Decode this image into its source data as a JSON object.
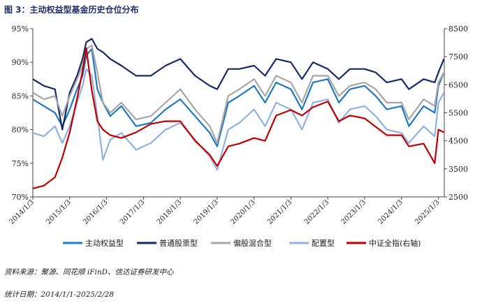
{
  "title": "图 3：主动权益型基金历史仓位分布",
  "source_note": "资料来源：聚源、同花顺 iFinD、信达证券研发中心",
  "date_note": "统计日期：2014/1/1-2025/2/28",
  "chart_data": {
    "type": "line",
    "x_ticks": [
      "2014/1/3",
      "2015/1/3",
      "2016/1/3",
      "2017/1/3",
      "2018/1/3",
      "2019/1/3",
      "2020/1/3",
      "2021/1/3",
      "2022/1/3",
      "2023/1/3",
      "2024/1/3",
      "2025/1/3"
    ],
    "y_left": {
      "ticks": [
        "70%",
        "75%",
        "80%",
        "85%",
        "90%",
        "95%"
      ],
      "range": [
        70,
        95
      ]
    },
    "y_right": {
      "ticks": [
        "2500",
        "3500",
        "4500",
        "5500",
        "6500",
        "7500",
        "8500"
      ],
      "range": [
        2500,
        8500
      ]
    },
    "grid": false,
    "legend_position": "bottom",
    "series": [
      {
        "name": "主动权益型",
        "axis": "left",
        "color": "#1f78c4",
        "x": [
          2014.0,
          2014.3,
          2014.6,
          2014.8,
          2015.0,
          2015.2,
          2015.35,
          2015.45,
          2015.6,
          2015.75,
          2015.9,
          2016.1,
          2016.4,
          2016.8,
          2017.2,
          2017.6,
          2018.0,
          2018.4,
          2018.8,
          2019.0,
          2019.3,
          2019.6,
          2020.0,
          2020.3,
          2020.6,
          2021.0,
          2021.3,
          2021.6,
          2022.0,
          2022.3,
          2022.6,
          2023.0,
          2023.3,
          2023.6,
          2024.0,
          2024.2,
          2024.6,
          2024.9,
          2025.0,
          2025.15
        ],
        "values": [
          84.5,
          83.5,
          82.5,
          80.5,
          83.0,
          86.0,
          88.0,
          91.0,
          92.0,
          86.0,
          84.0,
          82.0,
          83.5,
          80.5,
          81.0,
          83.0,
          84.5,
          82.0,
          79.5,
          77.5,
          84.0,
          85.0,
          86.5,
          84.0,
          87.0,
          86.0,
          83.0,
          87.0,
          87.5,
          84.0,
          86.0,
          86.5,
          85.0,
          83.0,
          83.5,
          80.5,
          83.5,
          82.5,
          86.5,
          88.5
        ]
      },
      {
        "name": "普通股票型",
        "axis": "left",
        "color": "#13296b",
        "x": [
          2014.0,
          2014.3,
          2014.6,
          2014.8,
          2015.0,
          2015.2,
          2015.35,
          2015.45,
          2015.6,
          2015.75,
          2015.9,
          2016.1,
          2016.4,
          2016.8,
          2017.2,
          2017.6,
          2018.0,
          2018.4,
          2018.8,
          2019.0,
          2019.3,
          2019.6,
          2020.0,
          2020.3,
          2020.6,
          2021.0,
          2021.3,
          2021.6,
          2022.0,
          2022.3,
          2022.6,
          2023.0,
          2023.3,
          2023.6,
          2024.0,
          2024.2,
          2024.6,
          2024.9,
          2025.0,
          2025.15
        ],
        "values": [
          87.5,
          86.5,
          86.0,
          80.0,
          85.5,
          88.0,
          90.5,
          93.0,
          93.5,
          92.0,
          91.5,
          90.5,
          89.5,
          88.0,
          88.0,
          89.5,
          90.5,
          88.0,
          86.5,
          86.0,
          89.0,
          89.0,
          89.5,
          88.0,
          90.5,
          90.0,
          87.5,
          90.0,
          89.0,
          87.5,
          89.0,
          89.0,
          88.5,
          87.0,
          87.5,
          86.0,
          87.5,
          87.0,
          88.5,
          90.5
        ]
      },
      {
        "name": "偏股混合型",
        "axis": "left",
        "color": "#a6a6a6",
        "x": [
          2014.0,
          2014.3,
          2014.6,
          2014.8,
          2015.0,
          2015.2,
          2015.35,
          2015.45,
          2015.6,
          2015.75,
          2015.9,
          2016.1,
          2016.4,
          2016.8,
          2017.2,
          2017.6,
          2018.0,
          2018.4,
          2018.8,
          2019.0,
          2019.3,
          2019.6,
          2020.0,
          2020.3,
          2020.6,
          2021.0,
          2021.3,
          2021.6,
          2022.0,
          2022.3,
          2022.6,
          2023.0,
          2023.3,
          2023.6,
          2024.0,
          2024.2,
          2024.6,
          2024.9,
          2025.0,
          2025.15
        ],
        "values": [
          85.5,
          84.5,
          85.0,
          82.0,
          85.0,
          87.5,
          89.5,
          92.0,
          92.5,
          88.5,
          84.0,
          82.5,
          84.0,
          81.5,
          82.0,
          84.0,
          86.0,
          83.0,
          80.5,
          78.0,
          85.0,
          86.0,
          87.5,
          85.0,
          88.0,
          87.0,
          84.0,
          88.0,
          88.0,
          85.0,
          86.5,
          87.0,
          86.0,
          84.0,
          84.0,
          81.5,
          84.5,
          83.5,
          87.0,
          88.5
        ]
      },
      {
        "name": "配置型",
        "axis": "left",
        "color": "#8fb1e3",
        "x": [
          2014.0,
          2014.3,
          2014.6,
          2014.8,
          2015.0,
          2015.2,
          2015.35,
          2015.45,
          2015.6,
          2015.75,
          2015.9,
          2016.1,
          2016.4,
          2016.8,
          2017.2,
          2017.6,
          2018.0,
          2018.4,
          2018.8,
          2019.0,
          2019.3,
          2019.6,
          2020.0,
          2020.3,
          2020.6,
          2021.0,
          2021.3,
          2021.6,
          2022.0,
          2022.3,
          2022.6,
          2023.0,
          2023.3,
          2023.6,
          2024.0,
          2024.2,
          2024.6,
          2024.9,
          2025.0,
          2025.15
        ],
        "values": [
          79.5,
          79.0,
          80.5,
          78.0,
          80.5,
          84.0,
          86.5,
          89.0,
          88.0,
          82.0,
          75.5,
          78.5,
          79.5,
          77.0,
          78.0,
          80.0,
          81.0,
          78.5,
          76.0,
          74.0,
          80.0,
          81.0,
          83.0,
          80.5,
          84.0,
          83.0,
          80.0,
          84.0,
          84.5,
          81.0,
          83.0,
          83.5,
          82.0,
          80.0,
          79.5,
          78.0,
          80.5,
          79.0,
          84.0,
          85.5
        ]
      },
      {
        "name": "中证全指(右轴)",
        "axis": "right",
        "color": "#c00000",
        "x": [
          2014.0,
          2014.3,
          2014.6,
          2014.8,
          2015.0,
          2015.2,
          2015.35,
          2015.45,
          2015.6,
          2015.75,
          2015.9,
          2016.1,
          2016.4,
          2016.8,
          2017.2,
          2017.6,
          2018.0,
          2018.4,
          2018.8,
          2019.0,
          2019.3,
          2019.6,
          2020.0,
          2020.3,
          2020.6,
          2021.0,
          2021.3,
          2021.6,
          2022.0,
          2022.3,
          2022.6,
          2023.0,
          2023.3,
          2023.6,
          2024.0,
          2024.2,
          2024.6,
          2024.9,
          2025.0,
          2025.15
        ],
        "values": [
          2800,
          2900,
          3200,
          3900,
          4800,
          6000,
          7000,
          7800,
          6300,
          5200,
          4900,
          4700,
          4600,
          4800,
          5100,
          5200,
          5200,
          4500,
          4000,
          3600,
          4300,
          4400,
          4600,
          4500,
          5400,
          5600,
          5400,
          5700,
          5900,
          5200,
          5400,
          5300,
          5000,
          4700,
          4700,
          4300,
          4400,
          3700,
          4900,
          4800
        ]
      }
    ]
  }
}
